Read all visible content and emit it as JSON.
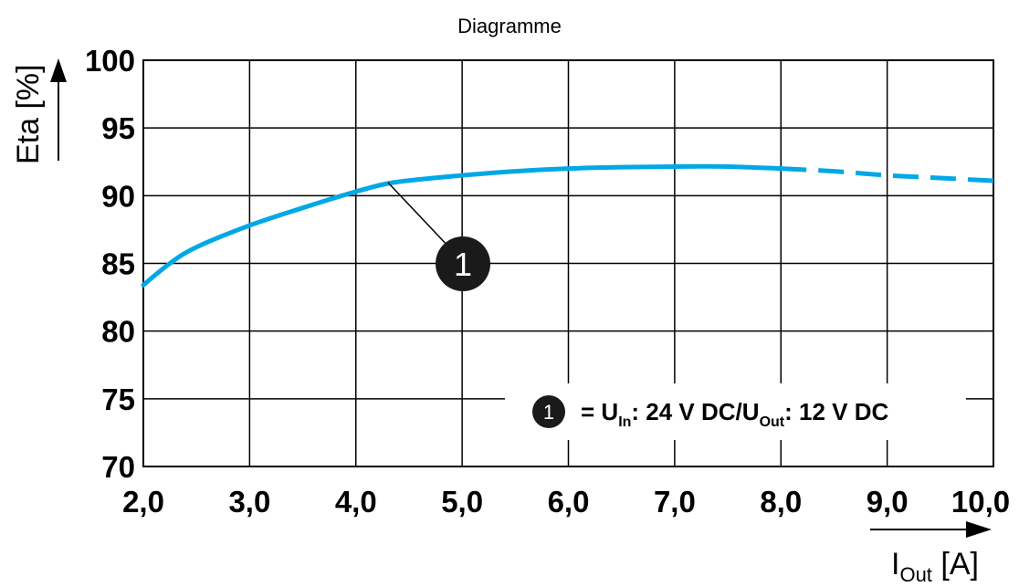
{
  "chart_data": {
    "type": "line",
    "title": "Diagramme",
    "ylabel": "Eta [%]",
    "xlabel_main": "I",
    "xlabel_sub": "Out",
    "xlabel_unit": " [A]",
    "xlim": [
      2.0,
      10.0
    ],
    "ylim": [
      70,
      100
    ],
    "grid": true,
    "x_ticks": [
      "2,0",
      "3,0",
      "4,0",
      "5,0",
      "6,0",
      "7,0",
      "8,0",
      "9,0",
      "10,0"
    ],
    "y_ticks": [
      "70",
      "75",
      "80",
      "85",
      "90",
      "95",
      "100"
    ],
    "series": [
      {
        "callout": "1",
        "color": "#00a8e6",
        "points": [
          {
            "x": 2.0,
            "y": 83.4
          },
          {
            "x": 2.25,
            "y": 85.0
          },
          {
            "x": 2.5,
            "y": 86.2
          },
          {
            "x": 3.0,
            "y": 87.8
          },
          {
            "x": 3.5,
            "y": 89.1
          },
          {
            "x": 4.0,
            "y": 90.3
          },
          {
            "x": 4.3,
            "y": 90.9
          },
          {
            "x": 4.6,
            "y": 91.2
          },
          {
            "x": 5.0,
            "y": 91.5
          },
          {
            "x": 5.5,
            "y": 91.8
          },
          {
            "x": 6.0,
            "y": 92.0
          },
          {
            "x": 6.5,
            "y": 92.1
          },
          {
            "x": 7.0,
            "y": 92.15
          },
          {
            "x": 7.5,
            "y": 92.15
          },
          {
            "x": 8.0,
            "y": 92.0
          }
        ],
        "dashed_points": [
          {
            "x": 8.0,
            "y": 92.0
          },
          {
            "x": 8.5,
            "y": 91.8
          },
          {
            "x": 9.0,
            "y": 91.5
          },
          {
            "x": 9.5,
            "y": 91.3
          },
          {
            "x": 10.0,
            "y": 91.1
          }
        ]
      }
    ],
    "legend": {
      "marker": "1",
      "prefix": "= U",
      "in_sub": "In",
      "mid": ": 24 V DC/U",
      "out_sub": "Out",
      "suffix": ": 12 V DC"
    }
  }
}
